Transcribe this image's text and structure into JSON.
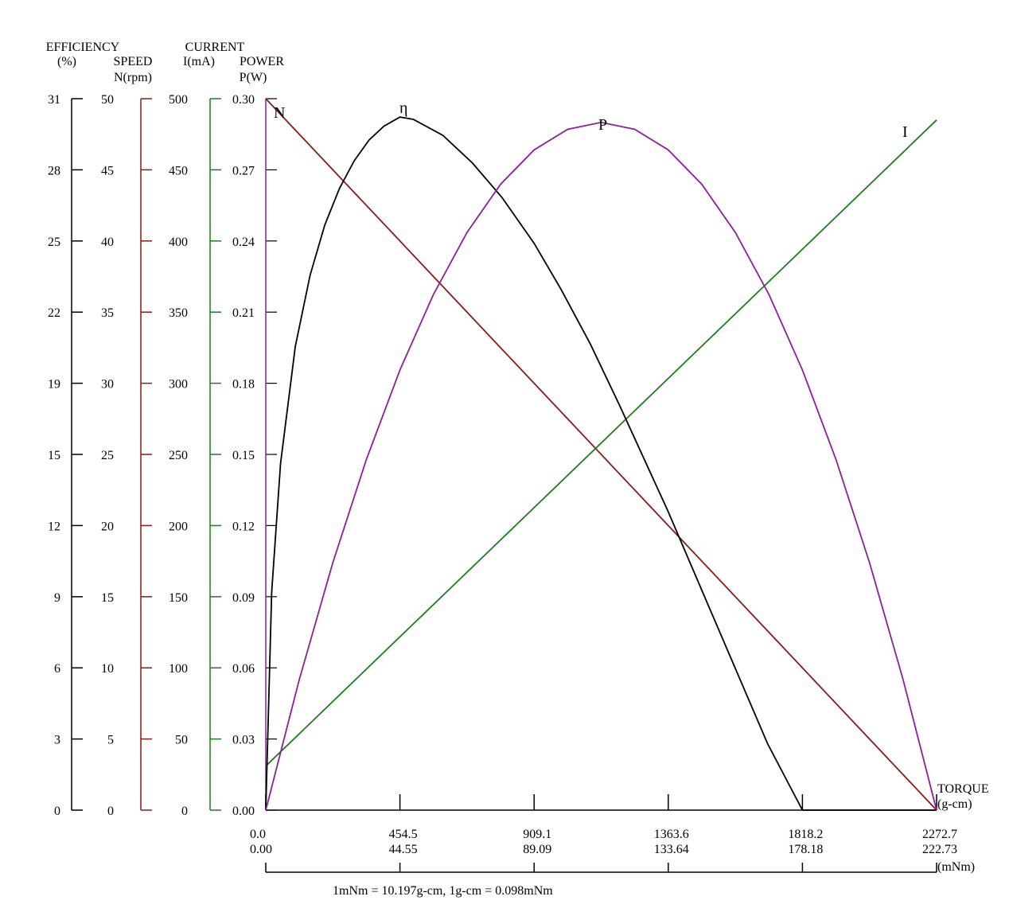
{
  "chart_data": {
    "type": "line",
    "title": "",
    "left_axes": [
      {
        "name_lines": [
          "EFFICIENCY",
          "(%)"
        ],
        "color": "#000000",
        "ticks": [
          "0",
          "3",
          "6",
          "9",
          "12",
          "15",
          "19",
          "22",
          "25",
          "28",
          "31"
        ],
        "range": [
          0,
          31
        ]
      },
      {
        "name_lines": [
          "SPEED",
          "N(rpm)"
        ],
        "color": "#8b1a1a",
        "ticks": [
          "0",
          "5",
          "10",
          "15",
          "20",
          "25",
          "30",
          "35",
          "40",
          "45",
          "50"
        ],
        "range": [
          0,
          50
        ]
      },
      {
        "name_lines": [
          "CURRENT",
          "I(mA)"
        ],
        "color": "#1a7f1a",
        "ticks": [
          "0",
          "50",
          "100",
          "150",
          "200",
          "250",
          "300",
          "350",
          "400",
          "450",
          "500"
        ],
        "range": [
          0,
          500
        ]
      },
      {
        "name_lines": [
          "POWER",
          "P(W)"
        ],
        "color": "#8e1c9e",
        "ticks": [
          "0.00",
          "0.03",
          "0.06",
          "0.09",
          "0.12",
          "0.15",
          "0.18",
          "0.21",
          "0.24",
          "0.27",
          "0.30"
        ],
        "range": [
          0,
          0.3
        ]
      }
    ],
    "x_axis": {
      "label_lines": [
        "TORQUE",
        "(g-cm)"
      ],
      "unit2": "(mNm)",
      "ticks_gcm": [
        "0.0",
        "454.5",
        "909.1",
        "1363.6",
        "1818.2",
        "2272.7"
      ],
      "ticks_mNm": [
        "0.00",
        "44.55",
        "89.09",
        "133.64",
        "178.18",
        "222.73"
      ],
      "range": [
        0,
        2272.7
      ]
    },
    "note": "1mNm = 10.197g-cm, 1g-cm = 0.098mNm",
    "series": [
      {
        "name": "N",
        "axis": 1,
        "color": "#8b1a1a",
        "x": [
          0,
          2272.7
        ],
        "y": [
          50,
          0
        ]
      },
      {
        "name": "I",
        "axis": 2,
        "color": "#1a7f1a",
        "x": [
          0,
          2272.7
        ],
        "y": [
          31,
          485
        ]
      },
      {
        "name": "η",
        "axis": 0,
        "color": "#000000",
        "x": [
          0,
          20,
          50,
          100,
          150,
          200,
          250,
          300,
          350,
          400,
          454.5,
          500,
          600,
          700,
          800,
          909.1,
          1000,
          1100,
          1200,
          1363.6,
          1500,
          1600,
          1700,
          1818.2,
          1900,
          2000,
          2100,
          2200,
          2272.7
        ],
        "y": [
          0,
          9.5,
          15.1,
          20.2,
          23.3,
          25.5,
          27.1,
          28.3,
          29.2,
          29.8,
          30.2,
          30.1,
          29.4,
          28.2,
          26.7,
          24.7,
          22.7,
          20.3,
          17.6,
          13.0,
          8.9,
          5.9,
          2.9,
          0,
          -0.1,
          -0.1,
          -0.1,
          -0.1,
          0
        ],
        "note_values_reach_zero_at_x": 2272.7
      },
      {
        "name": "P",
        "axis": 3,
        "color": "#8e1c9e",
        "x": [
          0,
          113.6,
          227.3,
          340.9,
          454.5,
          568.2,
          681.8,
          795.4,
          909.1,
          1022.7,
          1136.35,
          1250,
          1363.6,
          1477.3,
          1590.9,
          1704.5,
          1818.2,
          1931.8,
          2045.4,
          2159.1,
          2272.7
        ],
        "y": [
          0,
          0.0551,
          0.1044,
          0.1479,
          0.1856,
          0.2175,
          0.2436,
          0.2639,
          0.2784,
          0.2871,
          0.29,
          0.2871,
          0.2784,
          0.2639,
          0.2436,
          0.2175,
          0.1856,
          0.1479,
          0.1044,
          0.0551,
          0
        ]
      }
    ],
    "curve_labels": [
      {
        "text": "N",
        "series": "N"
      },
      {
        "text": "η",
        "series": "η"
      },
      {
        "text": "P",
        "series": "P"
      },
      {
        "text": "I",
        "series": "I"
      }
    ],
    "grid": false
  }
}
